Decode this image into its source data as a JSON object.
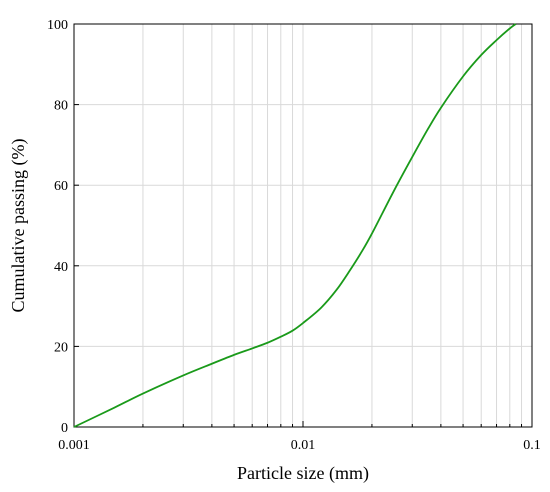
{
  "chart_data": {
    "type": "line",
    "xlabel": "Particle size (mm)",
    "ylabel": "Cumulative passing (%)",
    "xscale": "log",
    "xlim": [
      0.001,
      0.1
    ],
    "ylim": [
      0,
      100
    ],
    "x_ticks": [
      0.001,
      0.01,
      0.1
    ],
    "x_tick_labels": [
      "0.001",
      "0.01",
      "0.1"
    ],
    "y_ticks": [
      0,
      20,
      40,
      60,
      80,
      100
    ],
    "y_tick_labels": [
      "0",
      "20",
      "40",
      "60",
      "80",
      "100"
    ],
    "grid": true,
    "line_color": "#1a9a1a",
    "series": [
      {
        "x": [
          0.001,
          0.0015,
          0.002,
          0.003,
          0.004,
          0.005,
          0.006,
          0.007,
          0.008,
          0.009,
          0.01,
          0.012,
          0.014,
          0.016,
          0.018,
          0.02,
          0.025,
          0.03,
          0.035,
          0.04,
          0.05,
          0.06,
          0.07,
          0.08,
          0.085
        ],
        "y": [
          0,
          4.8,
          8.3,
          12.8,
          15.7,
          17.9,
          19.5,
          20.9,
          22.4,
          23.9,
          25.8,
          29.6,
          34.0,
          38.8,
          43.4,
          48.0,
          58.7,
          67.0,
          73.8,
          79.2,
          87.0,
          92.3,
          96.0,
          98.9,
          100
        ]
      }
    ]
  }
}
